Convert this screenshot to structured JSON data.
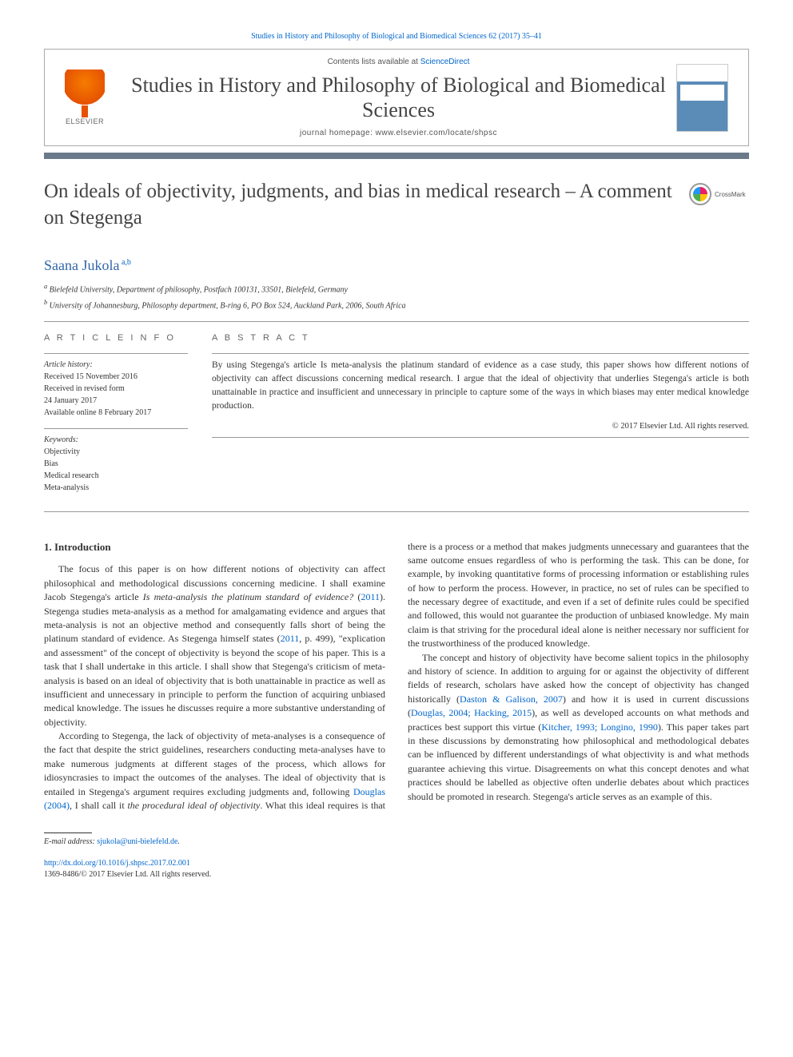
{
  "header": {
    "citation_prefix": "Studies in History and Philosophy of Biological and Biomedical Sciences 62 (2017) 35–41",
    "contents_prefix": "Contents lists available at ",
    "contents_link": "ScienceDirect",
    "journal_title": "Studies in History and Philosophy of Biological and Biomedical Sciences",
    "homepage_label": "journal homepage: ",
    "homepage_url": "www.elsevier.com/locate/shpsc",
    "publisher_name": "ELSEVIER"
  },
  "crossmark": {
    "label": "CrossMark"
  },
  "article": {
    "title": "On ideals of objectivity, judgments, and bias in medical research – A comment on Stegenga",
    "author_name": "Saana Jukola",
    "author_marks": "a,b",
    "affiliations": [
      {
        "mark": "a",
        "text": "Bielefeld University, Department of philosophy, Postfach 100131, 33501, Bielefeld, Germany"
      },
      {
        "mark": "b",
        "text": "University of Johannesburg, Philosophy department, B-ring 6, PO Box 524, Auckland Park, 2006, South Africa"
      }
    ]
  },
  "info": {
    "heading": "A R T I C L E   I N F O",
    "history_label": "Article history:",
    "history": [
      "Received 15 November 2016",
      "Received in revised form",
      "24 January 2017",
      "Available online 8 February 2017"
    ],
    "keywords_label": "Keywords:",
    "keywords": [
      "Objectivity",
      "Bias",
      "Medical research",
      "Meta-analysis"
    ]
  },
  "abstract": {
    "heading": "A B S T R A C T",
    "text": "By using Stegenga's article Is meta-analysis the platinum standard of evidence as a case study, this paper shows how different notions of objectivity can affect discussions concerning medical research. I argue that the ideal of objectivity that underlies Stegenga's article is both unattainable in practice and insufficient and unnecessary in principle to capture some of the ways in which biases may enter medical knowledge production.",
    "copyright": "© 2017 Elsevier Ltd. All rights reserved."
  },
  "body": {
    "section_number": "1.",
    "section_title": "Introduction",
    "p1_a": "The focus of this paper is on how different notions of objectivity can affect philosophical and methodological discussions concerning medicine. I shall examine Jacob Stegenga's article ",
    "p1_em1": "Is meta-analysis the platinum standard of evidence?",
    "p1_b": " (",
    "p1_link1": "2011",
    "p1_c": "). Stegenga studies meta-analysis as a method for amalgamating evidence and argues that meta-analysis is not an objective method and consequently falls short of being the platinum standard of evidence. As Stegenga himself states (",
    "p1_link2": "2011",
    "p1_d": ", p. 499), \"explication and assessment\" of the concept of objectivity is beyond the scope of his paper. This is a task that I shall undertake in this article. I shall show that Stegenga's criticism of meta-analysis is based on an ideal of objectivity that is both unattainable in practice as well as insufficient and unnecessary in principle to perform the function of acquiring unbiased medical knowledge. The issues he discusses require a more substantive understanding of objectivity.",
    "p2_a": "According to Stegenga, the lack of objectivity of meta-analyses is a consequence of the fact that despite the strict guidelines, researchers conducting meta-analyses have to make numerous judgments at different stages of the process, which allows for idiosyncrasies to impact the outcomes of the analyses. The ideal of objectivity that is entailed in Stegenga's argument requires excluding judgments and, following ",
    "p2_link1": "Douglas (2004)",
    "p2_b": ", I shall call it ",
    "p2_em1": "the procedural ideal of objectivity",
    "p2_c": ". What this ideal requires is that there is a process or a method that makes judgments unnecessary and guarantees that the same outcome ensues regardless of who is performing the task. This can be done, for example, by invoking quantitative forms of processing information or establishing rules of how to perform the process. However, in practice, no set of rules can be specified to the necessary degree of exactitude, and even if a set of definite rules could be specified and followed, this would not guarantee the production of unbiased knowledge. My main claim is that striving for the procedural ideal alone is neither necessary nor sufficient for the trustworthiness of the produced knowledge.",
    "p3_a": "The concept and history of objectivity have become salient topics in the philosophy and history of science. In addition to arguing for or against the objectivity of different fields of research, scholars have asked how the concept of objectivity has changed historically (",
    "p3_link1": "Daston & Galison, 2007",
    "p3_b": ") and how it is used in current discussions (",
    "p3_link2": "Douglas, 2004; Hacking, 2015",
    "p3_c": "), as well as developed accounts on what methods and practices best support this virtue (",
    "p3_link3": "Kitcher, 1993; Longino, 1990",
    "p3_d": "). This paper takes part in these discussions by demonstrating how philosophical and methodological debates can be influenced by different understandings of what objectivity is and what methods guarantee achieving this virtue. Disagreements on what this concept denotes and what practices should be labelled as objective often underlie debates about which practices should be promoted in research. Stegenga's article serves as an example of this."
  },
  "footnote": {
    "label": "E-mail address:",
    "email": "sjukola@uni-bielefeld.de"
  },
  "footer": {
    "doi": "http://dx.doi.org/10.1016/j.shpsc.2017.02.001",
    "issn_line": "1369-8486/© 2017 Elsevier Ltd. All rights reserved."
  },
  "colors": {
    "link": "#0066cc",
    "rule": "#6a7a8a",
    "heading": "#444444",
    "elsevier_orange": "#e65100"
  }
}
